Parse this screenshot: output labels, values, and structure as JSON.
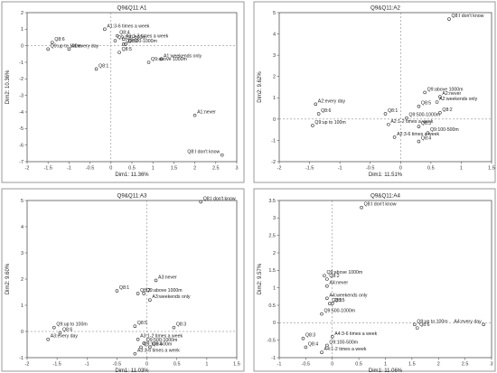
{
  "chart_data": [
    {
      "type": "scatter",
      "title": "Q9&Q11:A1",
      "xlabel": "Dim1: 11.36%",
      "ylabel": "Dim2: 10.36%",
      "xlim": [
        -2.0,
        3.0
      ],
      "ylim": [
        -7.0,
        2.0
      ],
      "xticks": [
        "-2",
        "-1.5",
        "-1",
        "-0.5",
        "0",
        "0.5",
        "1",
        "1.5",
        "2",
        "2.5",
        "3"
      ],
      "yticks": [
        "-7",
        "-6",
        "-5",
        "-4",
        "-3",
        "-2",
        "-1",
        "0",
        "1",
        "2"
      ],
      "xtick_values": [
        -2,
        -1.5,
        -1,
        -0.5,
        0,
        0.5,
        1,
        1.5,
        2,
        2.5,
        3
      ],
      "ytick_values": [
        -7,
        -6,
        -5,
        -4,
        -3,
        -2,
        -1,
        0,
        1,
        2
      ],
      "points": [
        {
          "label": "Q8:6",
          "x": -1.4,
          "y": 0.2
        },
        {
          "label": "Q9:up to 100m",
          "x": -1.5,
          "y": -0.2
        },
        {
          "label": "A1:every day",
          "x": -1.0,
          "y": -0.2
        },
        {
          "label": "Q8:1",
          "x": -0.35,
          "y": -1.4
        },
        {
          "label": "A1:3-6 times a week",
          "x": -0.15,
          "y": 1.0
        },
        {
          "label": "Q8:4",
          "x": 0.15,
          "y": 0.6
        },
        {
          "label": "A1:1-2 times a week",
          "x": 0.3,
          "y": 0.4
        },
        {
          "label": "Q9:100-500m",
          "x": 0.1,
          "y": 0.3
        },
        {
          "label": "Q9:500-1000m",
          "x": 0.3,
          "y": 0.1
        },
        {
          "label": "Q8:2",
          "x": 0.35,
          "y": 0.1
        },
        {
          "label": "Q8:5",
          "x": 0.2,
          "y": -0.4
        },
        {
          "label": "A1:weekends only",
          "x": 1.2,
          "y": -0.8
        },
        {
          "label": "Q9:above 1000m",
          "x": 0.9,
          "y": -1.0
        },
        {
          "label": "A1:never",
          "x": 2.0,
          "y": -4.2
        },
        {
          "label": "Q8:I don't know",
          "x": 2.65,
          "y": -6.6
        }
      ]
    },
    {
      "type": "scatter",
      "title": "Q9&Q11:A2",
      "xlabel": "Dim1: 11.51%",
      "ylabel": "Dim2: 9.62%",
      "xlim": [
        -2.0,
        1.5
      ],
      "ylim": [
        -2.0,
        5.0
      ],
      "xticks": [
        "-2",
        "-1.5",
        "-1",
        "-0.5",
        "0",
        "0.5",
        "1",
        "1.5"
      ],
      "yticks": [
        "-2",
        "-1",
        "0",
        "1",
        "2",
        "3",
        "4",
        "5"
      ],
      "xtick_values": [
        -2,
        -1.5,
        -1,
        -0.5,
        0,
        0.5,
        1,
        1.5
      ],
      "ytick_values": [
        -2,
        -1,
        0,
        1,
        2,
        3,
        4,
        5
      ],
      "points": [
        {
          "label": "Q8:I don't know",
          "x": 0.8,
          "y": 4.7
        },
        {
          "label": "Q9:above 1000m",
          "x": 0.4,
          "y": 1.25
        },
        {
          "label": "A2:never",
          "x": 0.65,
          "y": 1.05
        },
        {
          "label": "A2:weekends only",
          "x": 0.6,
          "y": 0.8
        },
        {
          "label": "Q8:5",
          "x": 0.3,
          "y": 0.6
        },
        {
          "label": "Q8:2",
          "x": 0.65,
          "y": 0.3
        },
        {
          "label": "A2:every day",
          "x": -1.4,
          "y": 0.7
        },
        {
          "label": "Q8:6",
          "x": -1.35,
          "y": 0.25
        },
        {
          "label": "Q9:up to 100m",
          "x": -1.45,
          "y": -0.3
        },
        {
          "label": "Q8:1",
          "x": -0.25,
          "y": 0.25
        },
        {
          "label": "Q9:500-1000m",
          "x": 0.1,
          "y": 0.05
        },
        {
          "label": "A2:1-2 times a week",
          "x": -0.2,
          "y": -0.25
        },
        {
          "label": "Q8:3",
          "x": 0.3,
          "y": -0.35
        },
        {
          "label": "Q9:100-500m",
          "x": 0.45,
          "y": -0.65
        },
        {
          "label": "A2:3-6 times a week",
          "x": -0.1,
          "y": -0.85
        },
        {
          "label": "Q8:4",
          "x": 0.3,
          "y": -1.05
        }
      ]
    },
    {
      "type": "scatter",
      "title": "Q9&Q11:A3",
      "xlabel": "Dim1: 11.03%",
      "ylabel": "Dim2: 9.60%",
      "xlim": [
        -2.0,
        1.5
      ],
      "ylim": [
        -1.0,
        5.0
      ],
      "xticks": [
        "-2",
        "-1.5",
        "-1",
        "-0.5",
        "0",
        "0.5",
        "1",
        "1.5"
      ],
      "yticks": [
        "-1",
        "0",
        "1",
        "2",
        "3",
        "4",
        "5"
      ],
      "xtick_values": [
        -2,
        -1.5,
        -1,
        -0.5,
        0,
        0.5,
        1,
        1.5
      ],
      "ytick_values": [
        -1,
        0,
        1,
        2,
        3,
        4,
        5
      ],
      "points": [
        {
          "label": "Q8:I don't know",
          "x": 0.9,
          "y": 4.95
        },
        {
          "label": "A3:never",
          "x": 0.15,
          "y": 1.95
        },
        {
          "label": "Q8:1",
          "x": -0.5,
          "y": 1.55
        },
        {
          "label": "Q8:2",
          "x": -0.15,
          "y": 1.45
        },
        {
          "label": "Q9:above 1000m",
          "x": -0.05,
          "y": 1.45
        },
        {
          "label": "A3:weekends only",
          "x": 0.05,
          "y": 1.2
        },
        {
          "label": "Q8:5",
          "x": -0.2,
          "y": 0.2
        },
        {
          "label": "Q8:3",
          "x": 0.45,
          "y": 0.15
        },
        {
          "label": "Q9:up to 100m",
          "x": -1.55,
          "y": 0.15
        },
        {
          "label": "Q8:6",
          "x": -1.45,
          "y": -0.05
        },
        {
          "label": "A3:every day",
          "x": -1.65,
          "y": -0.3
        },
        {
          "label": "A3:1-2 times a week",
          "x": -0.15,
          "y": -0.3
        },
        {
          "label": "Q9:500-1000m",
          "x": -0.05,
          "y": -0.45
        },
        {
          "label": "Q9:100-500m",
          "x": -0.1,
          "y": -0.6
        },
        {
          "label": "Q8:4",
          "x": 0.05,
          "y": -0.6
        },
        {
          "label": "A3:3-6 times a week",
          "x": -0.2,
          "y": -0.85
        }
      ]
    },
    {
      "type": "scatter",
      "title": "Q9&Q11:A4",
      "xlabel": "Dim1: 11.06%",
      "ylabel": "Dim2: 9.57%",
      "xlim": [
        -1.0,
        3.0
      ],
      "ylim": [
        -1.0,
        3.5
      ],
      "xticks": [
        "-1",
        "-0.5",
        "0",
        "0.5",
        "1",
        "1.5",
        "2",
        "2.5",
        "3"
      ],
      "yticks": [
        "-1",
        "-0.5",
        "0",
        "0.5",
        "1",
        "1.5",
        "2",
        "2.5",
        "3",
        "3.5"
      ],
      "xtick_values": [
        -1,
        -0.5,
        0,
        0.5,
        1,
        1.5,
        2,
        2.5,
        3
      ],
      "ytick_values": [
        -1,
        -0.5,
        0,
        0.5,
        1,
        1.5,
        2,
        2.5,
        3,
        3.5
      ],
      "points": [
        {
          "label": "Q8:I don't know",
          "x": 0.55,
          "y": 3.3
        },
        {
          "label": "Q9:above 1000m",
          "x": -0.15,
          "y": 1.35
        },
        {
          "label": "Q8:2",
          "x": -0.1,
          "y": 1.25
        },
        {
          "label": "A4:never",
          "x": -0.1,
          "y": 1.05
        },
        {
          "label": "A4:weekends only",
          "x": -0.1,
          "y": 0.7
        },
        {
          "label": "Q8:5",
          "x": 0.0,
          "y": 0.55
        },
        {
          "label": "Q8:1",
          "x": -0.05,
          "y": 0.55
        },
        {
          "label": "Q9:500-1000m",
          "x": -0.2,
          "y": 0.25
        },
        {
          "label": "Q9:up to 100m",
          "x": 1.55,
          "y": -0.05
        },
        {
          "label": "A4:every day",
          "x": 2.85,
          "y": -0.05
        },
        {
          "label": "Q8:6",
          "x": 1.6,
          "y": -0.15
        },
        {
          "label": "A4:3-6 times a week",
          "x": 0.0,
          "y": -0.4
        },
        {
          "label": "Q8:3",
          "x": -0.55,
          "y": -0.45
        },
        {
          "label": "Q9:100-500m",
          "x": -0.1,
          "y": -0.65
        },
        {
          "label": "Q8:4",
          "x": -0.5,
          "y": -0.7
        },
        {
          "label": "A4:1-2 times a week",
          "x": -0.2,
          "y": -0.85
        }
      ]
    }
  ]
}
